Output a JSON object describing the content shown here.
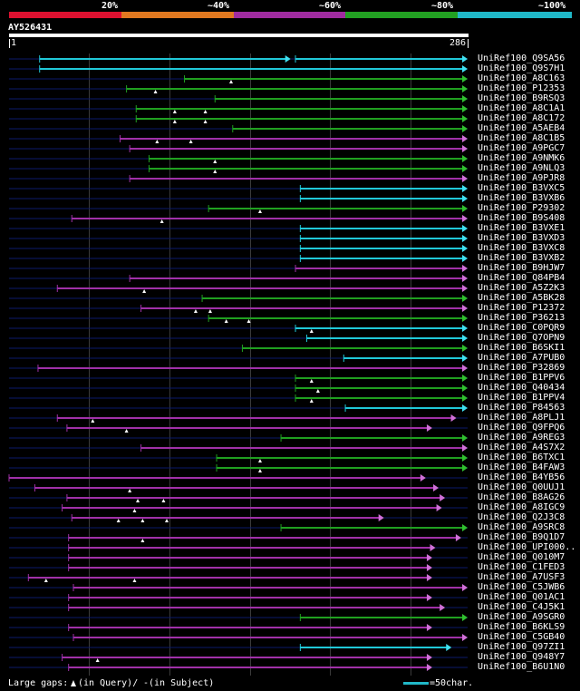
{
  "legend": {
    "percent_labels": [
      "20%",
      "~40%",
      "~60%",
      "~80%",
      "~100%"
    ],
    "colors": [
      "#dd1130",
      "#e07820",
      "#a02ca0",
      "#22a022",
      "#20b8c8"
    ]
  },
  "query": {
    "id": "AY526431",
    "start_label": "1",
    "end_label": "286",
    "length": 286
  },
  "footer": {
    "gaps_label": "Large gaps:",
    "query_label": "(in Query)/",
    "subject_symbol": "-",
    "subject_label": " (in Subject)",
    "scale_label": "=50char."
  },
  "hits": [
    {
      "name": "UniRef100_Q9SA56",
      "color": "cyan",
      "segs": [
        [
          20,
          176,
          "q"
        ],
        [
          179,
          286,
          "q"
        ]
      ],
      "gaps": []
    },
    {
      "name": "UniRef100_Q9S7H1",
      "color": "cyan",
      "segs": [
        [
          20,
          286,
          "q"
        ]
      ],
      "gaps": []
    },
    {
      "name": "UniRef100_A8C163",
      "color": "green",
      "segs": [
        [
          110,
          286,
          "q"
        ]
      ],
      "gaps": [
        139
      ]
    },
    {
      "name": "UniRef100_P12353",
      "color": "green",
      "segs": [
        [
          74,
          286,
          "q"
        ]
      ],
      "gaps": [
        92
      ]
    },
    {
      "name": "UniRef100_B9RSQ3",
      "color": "green",
      "segs": [
        [
          129,
          286,
          "q"
        ]
      ],
      "gaps": []
    },
    {
      "name": "UniRef100_A8C1A1",
      "color": "green",
      "segs": [
        [
          80,
          286,
          "q"
        ]
      ],
      "gaps": [
        104,
        123
      ]
    },
    {
      "name": "UniRef100_A8C172",
      "color": "green",
      "segs": [
        [
          80,
          286,
          "q"
        ]
      ],
      "gaps": [
        104,
        123
      ]
    },
    {
      "name": "UniRef100_A5AEB4",
      "color": "green",
      "segs": [
        [
          140,
          286,
          "q"
        ]
      ],
      "gaps": []
    },
    {
      "name": "UniRef100_A8C1B5",
      "color": "purple",
      "segs": [
        [
          70,
          286,
          "q"
        ]
      ],
      "gaps": [
        93,
        114
      ]
    },
    {
      "name": "UniRef100_A9PGC7",
      "color": "purple",
      "segs": [
        [
          76,
          286,
          "q"
        ]
      ],
      "gaps": []
    },
    {
      "name": "UniRef100_A9NMK6",
      "color": "green",
      "segs": [
        [
          88,
          286,
          "q"
        ]
      ],
      "gaps": [
        129
      ]
    },
    {
      "name": "UniRef100_A9NLQ3",
      "color": "green",
      "segs": [
        [
          88,
          286,
          "q"
        ]
      ],
      "gaps": [
        129
      ]
    },
    {
      "name": "UniRef100_A9PJR8",
      "color": "purple",
      "segs": [
        [
          76,
          286,
          "q"
        ]
      ],
      "gaps": []
    },
    {
      "name": "UniRef100_B3VXC5",
      "color": "cyan",
      "segs": [
        [
          182,
          286,
          "q"
        ]
      ],
      "gaps": []
    },
    {
      "name": "UniRef100_B3VXB6",
      "color": "cyan",
      "segs": [
        [
          182,
          286,
          "q"
        ]
      ],
      "gaps": []
    },
    {
      "name": "UniRef100_P29302",
      "color": "green",
      "segs": [
        [
          125,
          286,
          "q"
        ]
      ],
      "gaps": [
        157
      ]
    },
    {
      "name": "UniRef100_B9S408",
      "color": "purple",
      "segs": [
        [
          40,
          286,
          "q"
        ]
      ],
      "gaps": [
        96
      ]
    },
    {
      "name": "UniRef100_B3VXE1",
      "color": "cyan",
      "segs": [
        [
          182,
          286,
          "q"
        ]
      ],
      "gaps": []
    },
    {
      "name": "UniRef100_B3VXD3",
      "color": "cyan",
      "segs": [
        [
          182,
          286,
          "q"
        ]
      ],
      "gaps": []
    },
    {
      "name": "UniRef100_B3VXC8",
      "color": "cyan",
      "segs": [
        [
          182,
          286,
          "q"
        ]
      ],
      "gaps": []
    },
    {
      "name": "UniRef100_B3VXB2",
      "color": "cyan",
      "segs": [
        [
          182,
          286,
          "q"
        ]
      ],
      "gaps": []
    },
    {
      "name": "UniRef100_B9HJW7",
      "color": "purple",
      "segs": [
        [
          179,
          286,
          "q"
        ]
      ],
      "gaps": []
    },
    {
      "name": "UniRef100_Q84PB4",
      "color": "purple",
      "segs": [
        [
          76,
          286,
          "q"
        ]
      ],
      "gaps": []
    },
    {
      "name": "UniRef100_A5Z2K3",
      "color": "purple",
      "segs": [
        [
          31,
          286,
          "q"
        ]
      ],
      "gaps": [
        85
      ]
    },
    {
      "name": "UniRef100_A5BK28",
      "color": "green",
      "segs": [
        [
          121,
          286,
          "q"
        ]
      ],
      "gaps": []
    },
    {
      "name": "UniRef100_P12372",
      "color": "purple",
      "segs": [
        [
          83,
          286,
          "q"
        ]
      ],
      "gaps": [
        117,
        126
      ]
    },
    {
      "name": "UniRef100_P36213",
      "color": "green",
      "segs": [
        [
          125,
          286,
          "q"
        ]
      ],
      "gaps": [
        136,
        150
      ]
    },
    {
      "name": "UniRef100_C0PQR9",
      "color": "cyan",
      "segs": [
        [
          179,
          286,
          "q"
        ]
      ],
      "gaps": [
        189
      ]
    },
    {
      "name": "UniRef100_Q7OPN9",
      "color": "cyan",
      "segs": [
        [
          186,
          286,
          "q"
        ]
      ],
      "gaps": []
    },
    {
      "name": "UniRef100_B6SKI1",
      "color": "green",
      "segs": [
        [
          146,
          286,
          "q"
        ]
      ],
      "gaps": []
    },
    {
      "name": "UniRef100_A7PUB0",
      "color": "cyan",
      "segs": [
        [
          209,
          286,
          "q"
        ]
      ],
      "gaps": []
    },
    {
      "name": "UniRef100_P32869",
      "color": "purple",
      "segs": [
        [
          19,
          286,
          "q"
        ]
      ],
      "gaps": []
    },
    {
      "name": "UniRef100_B1PPV6",
      "color": "green",
      "segs": [
        [
          179,
          286,
          "q"
        ]
      ],
      "gaps": [
        189
      ]
    },
    {
      "name": "UniRef100_Q40434",
      "color": "green",
      "segs": [
        [
          179,
          286,
          "q"
        ]
      ],
      "gaps": [
        193
      ]
    },
    {
      "name": "UniRef100_B1PPV4",
      "color": "green",
      "segs": [
        [
          179,
          286,
          "q"
        ]
      ],
      "gaps": [
        189
      ]
    },
    {
      "name": "UniRef100_P84563",
      "color": "cyan",
      "segs": [
        [
          210,
          286,
          "q"
        ]
      ],
      "gaps": []
    },
    {
      "name": "UniRef100_A8PLJ1",
      "color": "purple",
      "segs": [
        [
          31,
          279,
          "s"
        ]
      ],
      "gaps": [
        53
      ]
    },
    {
      "name": "UniRef100_Q9FPQ6",
      "color": "purple",
      "segs": [
        [
          37,
          264,
          "s"
        ]
      ],
      "gaps": [
        74
      ]
    },
    {
      "name": "UniRef100_A9REG3",
      "color": "green",
      "segs": [
        [
          170,
          286,
          "q"
        ]
      ],
      "gaps": []
    },
    {
      "name": "UniRef100_A4S7X2",
      "color": "purple",
      "segs": [
        [
          83,
          286,
          "q"
        ]
      ],
      "gaps": []
    },
    {
      "name": "UniRef100_B6TXC1",
      "color": "green",
      "segs": [
        [
          130,
          286,
          "q"
        ]
      ],
      "gaps": [
        157
      ]
    },
    {
      "name": "UniRef100_B4FAW3",
      "color": "green",
      "segs": [
        [
          130,
          286,
          "q"
        ]
      ],
      "gaps": [
        157
      ]
    },
    {
      "name": "UniRef100_B4YB56",
      "color": "purple",
      "segs": [
        [
          1,
          260,
          "s"
        ]
      ],
      "gaps": []
    },
    {
      "name": "UniRef100_Q0UUJ1",
      "color": "purple",
      "segs": [
        [
          17,
          268,
          "s"
        ]
      ],
      "gaps": [
        76
      ]
    },
    {
      "name": "UniRef100_B8AG26",
      "color": "purple",
      "segs": [
        [
          37,
          272,
          "s"
        ]
      ],
      "gaps": [
        81,
        97
      ]
    },
    {
      "name": "UniRef100_A8IGC9",
      "color": "purple",
      "segs": [
        [
          34,
          270,
          "s"
        ]
      ],
      "gaps": [
        79
      ]
    },
    {
      "name": "UniRef100_Q2J3C8",
      "color": "purple",
      "segs": [
        [
          40,
          234,
          "s"
        ]
      ],
      "gaps": [
        69,
        84,
        99
      ]
    },
    {
      "name": "UniRef100_A9SRC8",
      "color": "green",
      "segs": [
        [
          170,
          286,
          "q"
        ]
      ],
      "gaps": []
    },
    {
      "name": "UniRef100_B9Q1D7",
      "color": "purple",
      "segs": [
        [
          38,
          282,
          "s"
        ]
      ],
      "gaps": [
        84
      ]
    },
    {
      "name": "UniRef100_UPI000..",
      "color": "purple",
      "segs": [
        [
          38,
          266,
          "s"
        ]
      ],
      "gaps": []
    },
    {
      "name": "UniRef100_Q010M7",
      "color": "purple",
      "segs": [
        [
          38,
          264,
          "s"
        ]
      ],
      "gaps": []
    },
    {
      "name": "UniRef100_C1FED3",
      "color": "purple",
      "segs": [
        [
          38,
          264,
          "s"
        ]
      ],
      "gaps": []
    },
    {
      "name": "UniRef100_A7USF3",
      "color": "purple",
      "segs": [
        [
          13,
          264,
          "s"
        ]
      ],
      "gaps": [
        24,
        79
      ]
    },
    {
      "name": "UniRef100_C5JWB6",
      "color": "purple",
      "segs": [
        [
          41,
          286,
          "s"
        ]
      ],
      "gaps": []
    },
    {
      "name": "UniRef100_Q01AC1",
      "color": "purple",
      "segs": [
        [
          38,
          264,
          "s"
        ]
      ],
      "gaps": []
    },
    {
      "name": "UniRef100_C4J5K1",
      "color": "purple",
      "segs": [
        [
          38,
          272,
          "s"
        ]
      ],
      "gaps": []
    },
    {
      "name": "UniRef100_A9SGR0",
      "color": "green",
      "segs": [
        [
          182,
          286,
          "q"
        ]
      ],
      "gaps": []
    },
    {
      "name": "UniRef100_B6KLS9",
      "color": "purple",
      "segs": [
        [
          38,
          264,
          "s"
        ]
      ],
      "gaps": []
    },
    {
      "name": "UniRef100_C5GB40",
      "color": "purple",
      "segs": [
        [
          41,
          286,
          "s"
        ]
      ],
      "gaps": []
    },
    {
      "name": "UniRef100_Q97ZI1",
      "color": "cyan",
      "segs": [
        [
          182,
          276,
          "s"
        ]
      ],
      "gaps": []
    },
    {
      "name": "UniRef100_Q948Y7",
      "color": "purple",
      "segs": [
        [
          34,
          264,
          "s"
        ]
      ],
      "gaps": [
        56
      ]
    },
    {
      "name": "UniRef100_B6U1N0",
      "color": "purple",
      "segs": [
        [
          38,
          264,
          "s"
        ]
      ],
      "gaps": []
    }
  ]
}
